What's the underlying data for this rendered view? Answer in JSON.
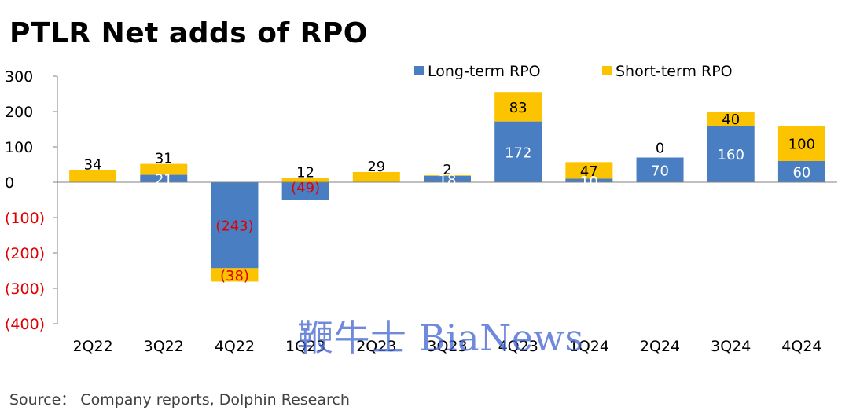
{
  "title": "PTLR Net adds of RPO",
  "source": "Source： Company reports, Dolphin Research",
  "watermark": "鞭牛士 BiaNews",
  "colors": {
    "long_term": "#4a7ec2",
    "short_term": "#fcc400",
    "negative_label": "#e00000",
    "axis": "#808080"
  },
  "chart_data": {
    "type": "bar",
    "stacked": true,
    "title": "PTLR Net adds of RPO",
    "categories": [
      "2Q22",
      "3Q22",
      "4Q22",
      "1Q23",
      "2Q23",
      "3Q23",
      "4Q23",
      "1Q24",
      "2Q24",
      "3Q24",
      "4Q24"
    ],
    "series": [
      {
        "name": "Long-term RPO",
        "values": [
          0,
          21,
          -243,
          -49,
          0,
          18,
          172,
          10,
          70,
          160,
          60
        ],
        "labels": [
          "",
          "21",
          "(243)",
          "(49)",
          "",
          "18",
          "172",
          "10",
          "70",
          "160",
          "60"
        ]
      },
      {
        "name": "Short-term RPO",
        "values": [
          34,
          31,
          -38,
          12,
          29,
          2,
          83,
          47,
          0,
          40,
          100
        ],
        "labels": [
          "34",
          "31",
          "(38)",
          "12",
          "29",
          "2",
          "83",
          "47",
          "0",
          "40",
          "100"
        ]
      }
    ],
    "yticks": [
      300,
      200,
      100,
      0,
      -100,
      -200,
      -300,
      -400
    ],
    "ytick_labels": [
      "300",
      "200",
      "100",
      "0",
      "(100)",
      "(200)",
      "(300)",
      "(400)"
    ],
    "ylim": [
      -400,
      300
    ],
    "xlabel": "",
    "ylabel": "",
    "legend_position": "top-right",
    "grid": false
  }
}
